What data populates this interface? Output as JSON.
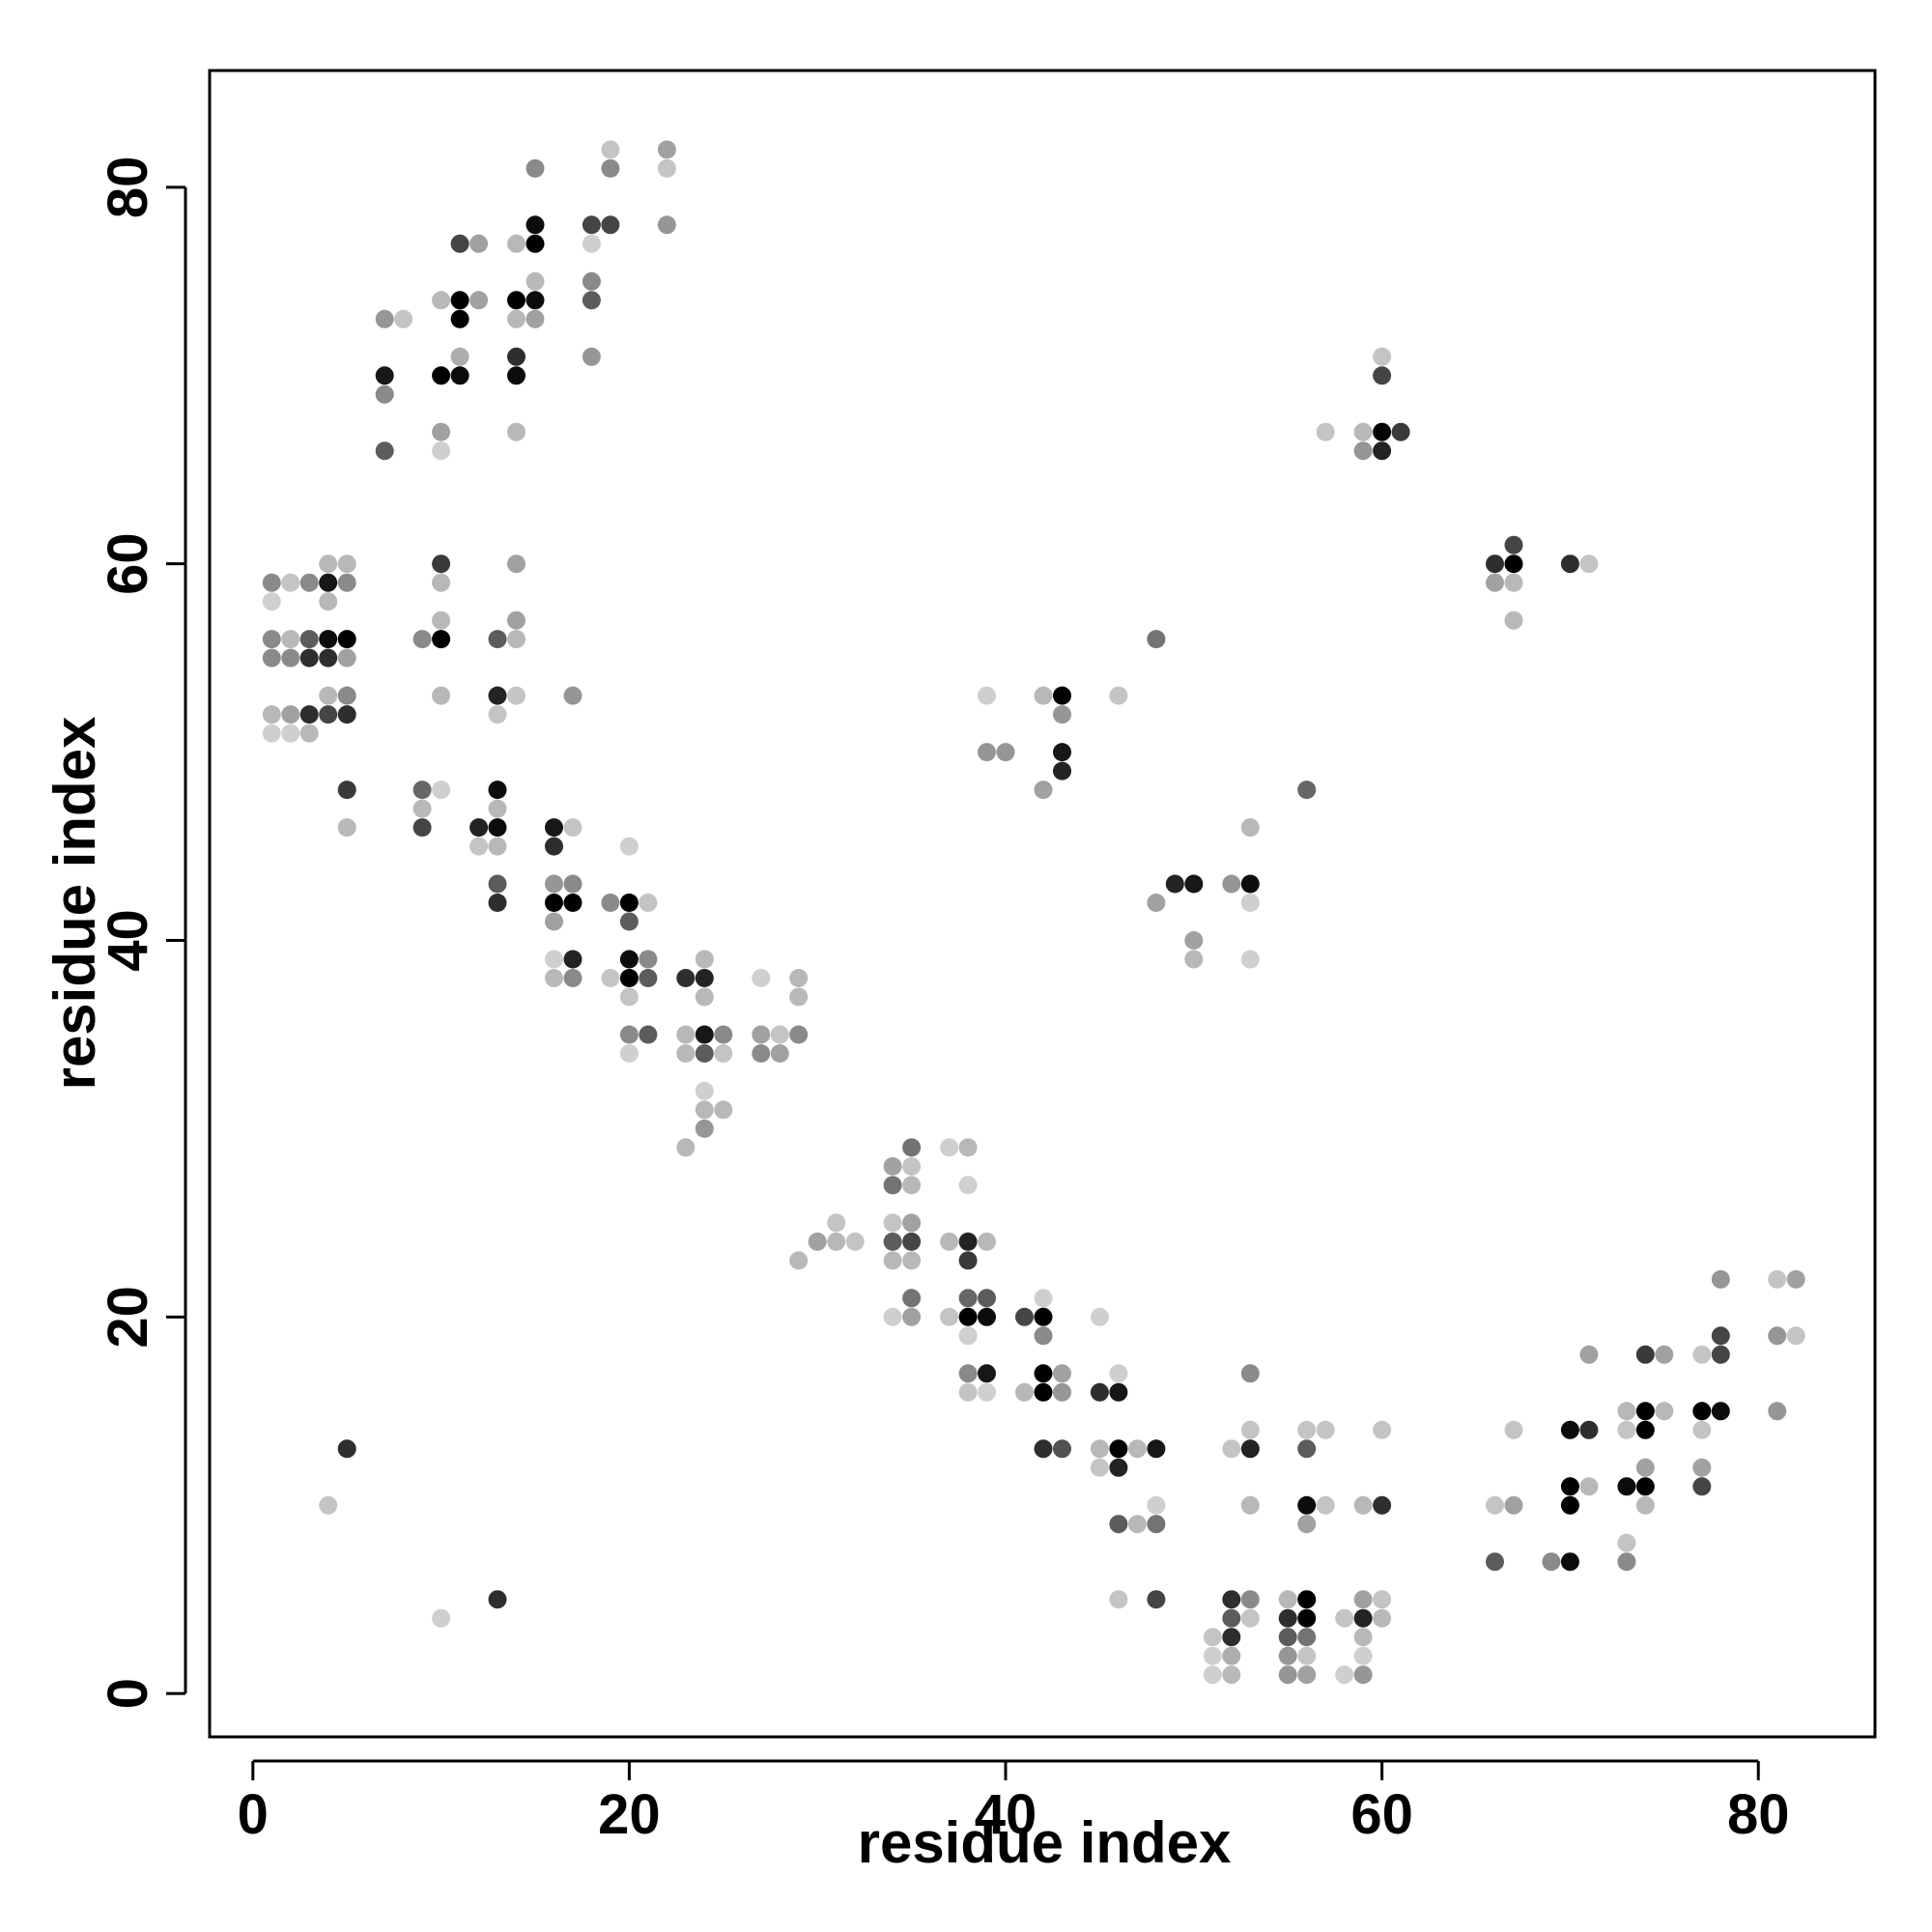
{
  "chart_data": {
    "type": "scatter",
    "title": "",
    "xlabel": "residue index",
    "ylabel": "residue index",
    "xlim": [
      -2.3,
      86.2
    ],
    "ylim": [
      -2.3,
      86.2
    ],
    "x_ticks": [
      0,
      20,
      40,
      60,
      80
    ],
    "y_ticks": [
      0,
      20,
      40,
      60,
      80
    ],
    "x_tick_labels": [
      "0",
      "20",
      "40",
      "60",
      "80"
    ],
    "y_tick_labels": [
      "0",
      "20",
      "40",
      "60",
      "80"
    ],
    "grid": false,
    "legend": "none",
    "point_color_scale": "grayscale, intensity 0 (light gray) to 1 (black)",
    "points": [
      [
        1,
        59,
        0.4
      ],
      [
        2,
        59,
        0.15
      ],
      [
        3,
        59,
        0.4
      ],
      [
        4,
        59,
        0.9
      ],
      [
        5,
        59,
        0.4
      ],
      [
        4,
        60,
        0.2
      ],
      [
        5,
        60,
        0.2
      ],
      [
        1,
        58,
        0.1
      ],
      [
        4,
        58,
        0.2
      ],
      [
        1,
        56,
        0.4
      ],
      [
        2,
        56,
        0.2
      ],
      [
        3,
        56,
        0.6
      ],
      [
        4,
        56,
        0.95
      ],
      [
        5,
        56,
        1.0
      ],
      [
        1,
        55,
        0.4
      ],
      [
        2,
        55,
        0.4
      ],
      [
        3,
        55,
        0.8
      ],
      [
        4,
        55,
        0.8
      ],
      [
        5,
        55,
        0.3
      ],
      [
        4,
        53,
        0.2
      ],
      [
        5,
        53,
        0.4
      ],
      [
        1,
        52,
        0.2
      ],
      [
        2,
        52,
        0.3
      ],
      [
        3,
        52,
        0.8
      ],
      [
        4,
        52,
        0.7
      ],
      [
        5,
        52,
        0.8
      ],
      [
        1,
        51,
        0.1
      ],
      [
        2,
        51,
        0.1
      ],
      [
        3,
        51,
        0.2
      ],
      [
        5,
        48,
        0.75
      ],
      [
        5,
        46,
        0.2
      ],
      [
        5,
        13,
        0.8
      ],
      [
        4,
        10,
        0.15
      ],
      [
        10,
        4,
        0.1
      ],
      [
        13,
        5,
        0.8
      ],
      [
        7,
        70,
        0.9
      ],
      [
        7,
        69,
        0.4
      ],
      [
        7,
        66,
        0.6
      ],
      [
        7,
        73,
        0.35
      ],
      [
        8,
        73,
        0.15
      ],
      [
        10,
        74,
        0.2
      ],
      [
        11,
        74,
        1.0
      ],
      [
        12,
        74,
        0.3
      ],
      [
        11,
        73,
        1.0
      ],
      [
        10,
        70,
        1.0
      ],
      [
        11,
        70,
        0.95
      ],
      [
        10,
        67,
        0.3
      ],
      [
        10,
        66,
        0.1
      ],
      [
        11,
        77,
        0.7
      ],
      [
        12,
        77,
        0.3
      ],
      [
        11,
        71,
        0.25
      ],
      [
        14,
        77,
        0.2
      ],
      [
        15,
        77,
        1.0
      ],
      [
        15,
        78,
        0.95
      ],
      [
        15,
        81,
        0.4
      ],
      [
        14,
        74,
        1.0
      ],
      [
        15,
        74,
        0.95
      ],
      [
        14,
        73,
        0.2
      ],
      [
        15,
        73,
        0.3
      ],
      [
        15,
        75,
        0.2
      ],
      [
        14,
        71,
        0.8
      ],
      [
        14,
        70,
        0.95
      ],
      [
        14,
        67,
        0.2
      ],
      [
        18,
        78,
        0.7
      ],
      [
        19,
        78,
        0.7
      ],
      [
        18,
        77,
        0.1
      ],
      [
        19,
        81,
        0.4
      ],
      [
        19,
        82,
        0.15
      ],
      [
        22,
        82,
        0.3
      ],
      [
        22,
        81,
        0.15
      ],
      [
        22,
        78,
        0.35
      ],
      [
        18,
        75,
        0.4
      ],
      [
        18,
        74,
        0.6
      ],
      [
        18,
        71,
        0.35
      ],
      [
        10,
        60,
        0.75
      ],
      [
        10,
        59,
        0.2
      ],
      [
        9,
        56,
        0.4
      ],
      [
        10,
        56,
        1.0
      ],
      [
        10,
        57,
        0.2
      ],
      [
        10,
        53,
        0.2
      ],
      [
        13,
        56,
        0.6
      ],
      [
        14,
        56,
        0.2
      ],
      [
        14,
        57,
        0.3
      ],
      [
        14,
        60,
        0.3
      ],
      [
        13,
        53,
        0.85
      ],
      [
        14,
        53,
        0.15
      ],
      [
        13,
        52,
        0.15
      ],
      [
        17,
        53,
        0.35
      ],
      [
        9,
        48,
        0.55
      ],
      [
        10,
        48,
        0.1
      ],
      [
        9,
        47,
        0.2
      ],
      [
        9,
        46,
        0.7
      ],
      [
        12,
        46,
        0.85
      ],
      [
        13,
        46,
        0.95
      ],
      [
        12,
        45,
        0.15
      ],
      [
        13,
        45,
        0.2
      ],
      [
        13,
        48,
        0.95
      ],
      [
        13,
        47,
        0.2
      ],
      [
        13,
        43,
        0.6
      ],
      [
        13,
        42,
        0.8
      ],
      [
        16,
        46,
        0.9
      ],
      [
        17,
        46,
        0.15
      ],
      [
        16,
        45,
        0.8
      ],
      [
        16,
        43,
        0.35
      ],
      [
        17,
        43,
        0.4
      ],
      [
        16,
        42,
        1.0
      ],
      [
        17,
        42,
        1.0
      ],
      [
        16,
        41,
        0.3
      ],
      [
        16,
        39,
        0.1
      ],
      [
        17,
        39,
        0.85
      ],
      [
        16,
        38,
        0.2
      ],
      [
        17,
        38,
        0.4
      ],
      [
        19,
        42,
        0.4
      ],
      [
        20,
        42,
        1.0
      ],
      [
        21,
        42,
        0.15
      ],
      [
        20,
        45,
        0.1
      ],
      [
        20,
        41,
        0.6
      ],
      [
        19,
        38,
        0.15
      ],
      [
        20,
        39,
        0.95
      ],
      [
        21,
        39,
        0.4
      ],
      [
        20,
        38,
        1.0
      ],
      [
        21,
        38,
        0.6
      ],
      [
        20,
        37,
        0.15
      ],
      [
        20,
        35,
        0.4
      ],
      [
        21,
        35,
        0.6
      ],
      [
        20,
        34,
        0.1
      ],
      [
        23,
        38,
        0.8
      ],
      [
        24,
        38,
        0.85
      ],
      [
        24,
        39,
        0.2
      ],
      [
        24,
        37,
        0.2
      ],
      [
        23,
        35,
        0.2
      ],
      [
        24,
        35,
        0.9
      ],
      [
        25,
        35,
        0.4
      ],
      [
        23,
        34,
        0.2
      ],
      [
        24,
        34,
        0.6
      ],
      [
        25,
        34,
        0.15
      ],
      [
        24,
        32,
        0.1
      ],
      [
        24,
        31,
        0.2
      ],
      [
        25,
        31,
        0.2
      ],
      [
        24,
        30,
        0.35
      ],
      [
        23,
        29,
        0.2
      ],
      [
        27,
        38,
        0.1
      ],
      [
        29,
        38,
        0.2
      ],
      [
        29,
        37,
        0.2
      ],
      [
        27,
        35,
        0.3
      ],
      [
        28,
        35,
        0.15
      ],
      [
        29,
        35,
        0.4
      ],
      [
        27,
        34,
        0.4
      ],
      [
        28,
        34,
        0.3
      ],
      [
        29,
        23,
        0.2
      ],
      [
        30,
        24,
        0.3
      ],
      [
        31,
        24,
        0.2
      ],
      [
        31,
        25,
        0.15
      ],
      [
        32,
        24,
        0.15
      ],
      [
        34,
        28,
        0.3
      ],
      [
        35,
        28,
        0.15
      ],
      [
        35,
        29,
        0.5
      ],
      [
        34,
        27,
        0.5
      ],
      [
        35,
        27,
        0.2
      ],
      [
        34,
        25,
        0.15
      ],
      [
        35,
        25,
        0.3
      ],
      [
        34,
        24,
        0.6
      ],
      [
        35,
        24,
        0.7
      ],
      [
        34,
        23,
        0.2
      ],
      [
        35,
        23,
        0.2
      ],
      [
        35,
        21,
        0.5
      ],
      [
        34,
        20,
        0.1
      ],
      [
        35,
        20,
        0.3
      ],
      [
        37,
        29,
        0.1
      ],
      [
        38,
        29,
        0.2
      ],
      [
        38,
        27,
        0.1
      ],
      [
        37,
        24,
        0.2
      ],
      [
        38,
        24,
        0.85
      ],
      [
        39,
        24,
        0.2
      ],
      [
        38,
        23,
        0.75
      ],
      [
        38,
        21,
        0.55
      ],
      [
        39,
        21,
        0.6
      ],
      [
        37,
        20,
        0.15
      ],
      [
        38,
        20,
        1.0
      ],
      [
        39,
        20,
        0.95
      ],
      [
        38,
        19,
        0.1
      ],
      [
        38,
        17,
        0.4
      ],
      [
        39,
        17,
        0.9
      ],
      [
        38,
        16,
        0.15
      ],
      [
        39,
        16,
        0.1
      ],
      [
        41,
        20,
        0.7
      ],
      [
        42,
        20,
        1.0
      ],
      [
        42,
        21,
        0.1
      ],
      [
        42,
        19,
        0.4
      ],
      [
        45,
        20,
        0.1
      ],
      [
        41,
        16,
        0.2
      ],
      [
        42,
        17,
        1.0
      ],
      [
        43,
        17,
        0.3
      ],
      [
        42,
        16,
        1.0
      ],
      [
        43,
        16,
        0.35
      ],
      [
        42,
        13,
        0.8
      ],
      [
        43,
        13,
        0.65
      ],
      [
        45,
        16,
        0.8
      ],
      [
        46,
        16,
        0.9
      ],
      [
        46,
        17,
        0.1
      ],
      [
        45,
        13,
        0.2
      ],
      [
        46,
        13,
        1.0
      ],
      [
        47,
        13,
        0.2
      ],
      [
        48,
        13,
        0.9
      ],
      [
        45,
        12,
        0.15
      ],
      [
        46,
        12,
        0.85
      ],
      [
        46,
        9,
        0.6
      ],
      [
        47,
        9,
        0.2
      ],
      [
        48,
        9,
        0.5
      ],
      [
        48,
        10,
        0.1
      ],
      [
        46,
        5,
        0.15
      ],
      [
        48,
        5,
        0.7
      ],
      [
        39,
        53,
        0.1
      ],
      [
        42,
        53,
        0.2
      ],
      [
        43,
        53,
        1.0
      ],
      [
        43,
        52,
        0.35
      ],
      [
        39,
        50,
        0.35
      ],
      [
        40,
        50,
        0.35
      ],
      [
        43,
        50,
        0.9
      ],
      [
        42,
        48,
        0.3
      ],
      [
        43,
        49,
        0.85
      ],
      [
        46,
        53,
        0.15
      ],
      [
        48,
        56,
        0.5
      ],
      [
        48,
        42,
        0.3
      ],
      [
        49,
        43,
        0.85
      ],
      [
        50,
        43,
        0.9
      ],
      [
        50,
        40,
        0.3
      ],
      [
        50,
        39,
        0.2
      ],
      [
        52,
        43,
        0.35
      ],
      [
        53,
        43,
        0.95
      ],
      [
        53,
        42,
        0.1
      ],
      [
        53,
        46,
        0.2
      ],
      [
        53,
        39,
        0.1
      ],
      [
        56,
        48,
        0.55
      ],
      [
        52,
        13,
        0.15
      ],
      [
        53,
        13,
        0.85
      ],
      [
        53,
        14,
        0.15
      ],
      [
        53,
        17,
        0.4
      ],
      [
        53,
        10,
        0.2
      ],
      [
        52,
        5,
        0.8
      ],
      [
        53,
        5,
        0.4
      ],
      [
        52,
        4,
        0.6
      ],
      [
        53,
        4,
        0.15
      ],
      [
        51,
        3,
        0.15
      ],
      [
        52,
        3,
        0.8
      ],
      [
        51,
        2,
        0.1
      ],
      [
        52,
        2,
        0.25
      ],
      [
        51,
        1,
        0.1
      ],
      [
        52,
        1,
        0.2
      ],
      [
        55,
        5,
        0.2
      ],
      [
        56,
        5,
        1.0
      ],
      [
        55,
        4,
        0.8
      ],
      [
        56,
        4,
        1.0
      ],
      [
        55,
        3,
        0.6
      ],
      [
        56,
        3,
        0.5
      ],
      [
        55,
        2,
        0.35
      ],
      [
        56,
        2,
        0.15
      ],
      [
        55,
        1,
        0.35
      ],
      [
        56,
        1,
        0.3
      ],
      [
        56,
        14,
        0.15
      ],
      [
        57,
        14,
        0.15
      ],
      [
        56,
        13,
        0.6
      ],
      [
        56,
        10,
        0.95
      ],
      [
        57,
        10,
        0.15
      ],
      [
        56,
        9,
        0.3
      ],
      [
        58,
        4,
        0.15
      ],
      [
        59,
        5,
        0.3
      ],
      [
        60,
        5,
        0.15
      ],
      [
        59,
        4,
        0.85
      ],
      [
        60,
        4,
        0.2
      ],
      [
        59,
        3,
        0.2
      ],
      [
        59,
        2,
        0.1
      ],
      [
        58,
        1,
        0.1
      ],
      [
        59,
        1,
        0.35
      ],
      [
        59,
        10,
        0.2
      ],
      [
        60,
        10,
        0.8
      ],
      [
        60,
        14,
        0.15
      ],
      [
        57,
        67,
        0.15
      ],
      [
        59,
        67,
        0.2
      ],
      [
        60,
        67,
        1.0
      ],
      [
        61,
        67,
        0.75
      ],
      [
        59,
        66,
        0.35
      ],
      [
        60,
        66,
        0.85
      ],
      [
        60,
        70,
        0.7
      ],
      [
        60,
        71,
        0.15
      ],
      [
        66,
        60,
        0.8
      ],
      [
        67,
        60,
        1.0
      ],
      [
        67,
        61,
        0.7
      ],
      [
        66,
        59,
        0.3
      ],
      [
        67,
        59,
        0.2
      ],
      [
        67,
        57,
        0.2
      ],
      [
        70,
        60,
        0.8
      ],
      [
        71,
        60,
        0.15
      ],
      [
        66,
        10,
        0.15
      ],
      [
        67,
        10,
        0.3
      ],
      [
        67,
        14,
        0.15
      ],
      [
        66,
        7,
        0.6
      ],
      [
        69,
        7,
        0.4
      ],
      [
        70,
        7,
        0.95
      ],
      [
        70,
        14,
        0.95
      ],
      [
        71,
        14,
        0.8
      ],
      [
        71,
        18,
        0.3
      ],
      [
        70,
        11,
        1.0
      ],
      [
        71,
        11,
        0.2
      ],
      [
        70,
        10,
        1.0
      ],
      [
        73,
        15,
        0.2
      ],
      [
        74,
        15,
        1.0
      ],
      [
        75,
        15,
        0.2
      ],
      [
        73,
        14,
        0.15
      ],
      [
        74,
        14,
        1.0
      ],
      [
        73,
        11,
        0.95
      ],
      [
        74,
        11,
        1.0
      ],
      [
        74,
        12,
        0.3
      ],
      [
        74,
        10,
        0.2
      ],
      [
        74,
        18,
        0.75
      ],
      [
        75,
        18,
        0.3
      ],
      [
        73,
        8,
        0.15
      ],
      [
        73,
        7,
        0.4
      ],
      [
        77,
        15,
        1.0
      ],
      [
        78,
        15,
        0.95
      ],
      [
        77,
        14,
        0.15
      ],
      [
        77,
        12,
        0.3
      ],
      [
        77,
        11,
        0.7
      ],
      [
        77,
        18,
        0.15
      ],
      [
        78,
        18,
        0.7
      ],
      [
        78,
        19,
        0.7
      ],
      [
        78,
        22,
        0.35
      ],
      [
        81,
        22,
        0.15
      ],
      [
        82,
        22,
        0.3
      ],
      [
        81,
        19,
        0.35
      ],
      [
        82,
        19,
        0.15
      ],
      [
        81,
        15,
        0.35
      ]
    ]
  }
}
